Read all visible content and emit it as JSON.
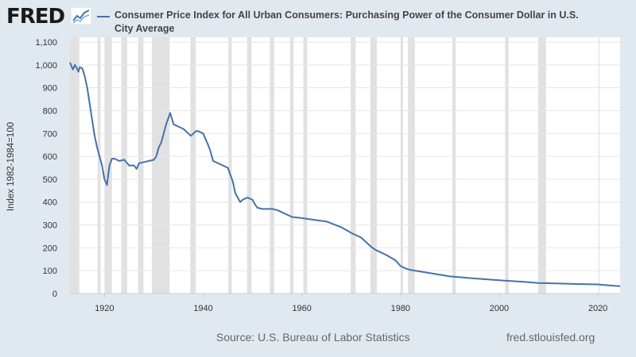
{
  "header": {
    "logo_text": "FRED",
    "logo_icon": "fred-chart-logo-icon"
  },
  "colors": {
    "background": "#e1e9f0",
    "plot_background": "#ffffff",
    "recession": "#e1e1e1",
    "series": "#4572a7",
    "grid": "#e6e6e6",
    "axis_text": "#333333"
  },
  "footer": {
    "source": "Source: U.S. Bureau of Labor Statistics",
    "site": "fred.stlouisfed.org"
  },
  "chart_data": {
    "type": "line",
    "title": "",
    "xlabel": "",
    "ylabel": "Index 1982-1984=100",
    "grid": "horizontal",
    "legend_position": "top",
    "xlim": [
      1913,
      2024.5
    ],
    "ylim": [
      0,
      1100
    ],
    "x_ticks": [
      1920,
      1940,
      1960,
      1980,
      2000,
      2020
    ],
    "y_ticks": [
      0,
      100,
      200,
      300,
      400,
      500,
      600,
      700,
      800,
      900,
      1000,
      1100
    ],
    "y_tick_labels": [
      "0",
      "100",
      "200",
      "300",
      "400",
      "500",
      "600",
      "700",
      "800",
      "900",
      "1,000",
      "1,100"
    ],
    "recessions": [
      [
        1913.0,
        1914.9
      ],
      [
        1918.6,
        1919.2
      ],
      [
        1920.0,
        1921.5
      ],
      [
        1923.4,
        1924.6
      ],
      [
        1926.8,
        1927.9
      ],
      [
        1929.6,
        1933.2
      ],
      [
        1937.4,
        1938.5
      ],
      [
        1945.1,
        1945.8
      ],
      [
        1948.9,
        1949.8
      ],
      [
        1953.5,
        1954.4
      ],
      [
        1957.6,
        1958.3
      ],
      [
        1960.3,
        1961.1
      ],
      [
        1969.9,
        1970.9
      ],
      [
        1973.9,
        1975.2
      ],
      [
        1980.0,
        1980.5
      ],
      [
        1981.5,
        1982.9
      ],
      [
        1990.5,
        1991.2
      ],
      [
        2001.2,
        2001.9
      ],
      [
        2007.9,
        2009.5
      ],
      [
        2020.1,
        2020.3
      ]
    ],
    "series": [
      {
        "name": "Consumer Price Index for All Urban Consumers: Purchasing Power of the Consumer Dollar in U.S. City Average",
        "x": [
          1913,
          1913.3,
          1913.6,
          1914,
          1914.4,
          1914.7,
          1915,
          1915.5,
          1916,
          1916.5,
          1917,
          1917.5,
          1918,
          1918.5,
          1919,
          1919.5,
          1920,
          1920.5,
          1921,
          1921.5,
          1922,
          1923,
          1924,
          1925,
          1926,
          1926.5,
          1927,
          1928,
          1929,
          1930,
          1930.5,
          1931,
          1931.5,
          1932,
          1932.5,
          1933,
          1933.3,
          1934,
          1935,
          1936,
          1937,
          1937.5,
          1938,
          1938.5,
          1939,
          1940,
          1941,
          1941.5,
          1942,
          1943,
          1944,
          1945,
          1946,
          1946.5,
          1947,
          1947.5,
          1948,
          1948.5,
          1949,
          1950,
          1950.5,
          1951,
          1952,
          1953,
          1954,
          1955,
          1956,
          1957,
          1958,
          1960,
          1965,
          1968,
          1970,
          1972,
          1974,
          1975,
          1977,
          1979,
          1980,
          1981,
          1982,
          1985,
          1990,
          1995,
          2000,
          2005,
          2008,
          2010,
          2015,
          2020,
          2022,
          2024,
          2024.5
        ],
        "values": [
          1010,
          995,
          980,
          1000,
          985,
          970,
          990,
          985,
          950,
          900,
          830,
          760,
          690,
          640,
          600,
          560,
          500,
          475,
          560,
          590,
          590,
          580,
          585,
          560,
          560,
          545,
          570,
          575,
          580,
          585,
          600,
          640,
          660,
          700,
          740,
          770,
          790,
          740,
          730,
          720,
          700,
          690,
          700,
          710,
          710,
          700,
          650,
          620,
          580,
          570,
          560,
          550,
          490,
          440,
          420,
          400,
          410,
          415,
          420,
          410,
          390,
          375,
          370,
          370,
          370,
          365,
          355,
          345,
          335,
          330,
          315,
          290,
          265,
          245,
          205,
          190,
          170,
          145,
          120,
          110,
          103,
          93,
          75,
          66,
          58,
          51,
          46,
          45,
          42,
          40,
          36,
          33,
          32
        ]
      }
    ]
  }
}
